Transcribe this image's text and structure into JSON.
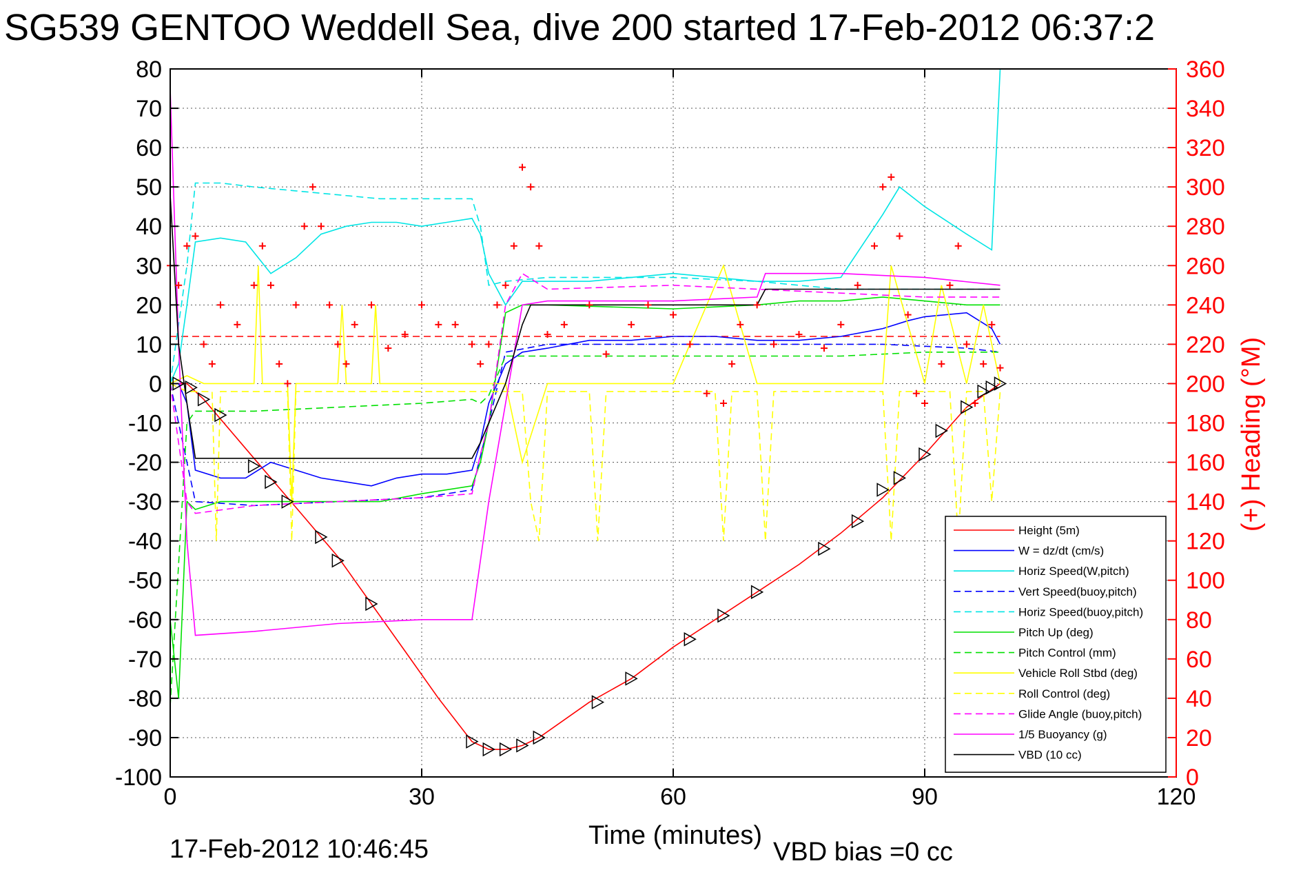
{
  "chart_data": {
    "type": "line",
    "title": "SG539 GENTOO Weddell Sea, dive 200 started 17-Feb-2012 06:37:2",
    "xlabel": "Time (minutes)",
    "ylabel_right": "(+) Heading (°M)",
    "footer_left": "17-Feb-2012 10:46:45",
    "footer_right": "VBD bias =0 cc",
    "xlim": [
      0,
      120
    ],
    "ylim_left": [
      -100,
      80
    ],
    "ylim_right": [
      0,
      360
    ],
    "xticks": [
      "0",
      "30",
      "60",
      "90",
      "120"
    ],
    "yticks_left": [
      "80",
      "70",
      "60",
      "50",
      "40",
      "30",
      "20",
      "10",
      "0",
      "-10",
      "-20",
      "-30",
      "-40",
      "-50",
      "-60",
      "-70",
      "-80",
      "-90",
      "-100"
    ],
    "yticks_right": [
      "360",
      "340",
      "320",
      "300",
      "280",
      "260",
      "240",
      "220",
      "200",
      "180",
      "160",
      "140",
      "120",
      "100",
      "80",
      "60",
      "40",
      "20",
      "0"
    ],
    "grid": true,
    "legend_position": "lower-right",
    "series": [
      {
        "name": "Height (5m)",
        "color": "#ff0000",
        "dash": "solid",
        "x": [
          0,
          1,
          2,
          4,
          8,
          12,
          16,
          20,
          24,
          28,
          32,
          36,
          38,
          40,
          42,
          44,
          50,
          55,
          60,
          65,
          70,
          75,
          80,
          85,
          90,
          95,
          99
        ],
        "y": [
          0,
          0,
          0,
          -4,
          -14,
          -24,
          -34,
          -44,
          -56,
          -68,
          -80,
          -91,
          -93,
          -93,
          -92,
          -90,
          -81,
          -75,
          -67,
          -60,
          -53,
          -46,
          -38,
          -29,
          -18,
          -6,
          0
        ]
      },
      {
        "name": "W = dz/dt (cm/s)",
        "color": "#0000ff",
        "dash": "solid",
        "x": [
          0,
          1,
          2,
          3,
          6,
          9,
          12,
          15,
          18,
          21,
          24,
          27,
          30,
          33,
          36,
          37,
          38,
          39,
          40,
          42,
          45,
          50,
          55,
          60,
          65,
          70,
          75,
          80,
          85,
          88,
          90,
          95,
          98,
          99
        ],
        "y": [
          0,
          0,
          -5,
          -22,
          -24,
          -24,
          -20,
          -22,
          -24,
          -25,
          -26,
          -24,
          -23,
          -23,
          -22,
          -15,
          -5,
          0,
          5,
          8,
          9,
          11,
          11,
          12,
          12,
          11,
          11,
          12,
          14,
          16,
          17,
          18,
          14,
          10
        ]
      },
      {
        "name": "Horiz Speed(W,pitch)",
        "color": "#00e5e5",
        "dash": "solid",
        "x": [
          0,
          1,
          2,
          3,
          6,
          9,
          12,
          15,
          18,
          21,
          24,
          27,
          30,
          33,
          36,
          37,
          38,
          40,
          42,
          45,
          50,
          55,
          60,
          65,
          70,
          75,
          80,
          85,
          87,
          90,
          95,
          98,
          99
        ],
        "y": [
          0,
          5,
          20,
          36,
          37,
          36,
          28,
          32,
          38,
          40,
          41,
          41,
          40,
          41,
          42,
          38,
          28,
          20,
          26,
          26,
          26,
          27,
          28,
          27,
          26,
          26,
          27,
          43,
          50,
          45,
          38,
          34,
          80
        ]
      },
      {
        "name": "Vert Speed(buoy,pitch)",
        "color": "#0000ff",
        "dash": "dashed",
        "x": [
          0,
          2,
          3,
          10,
          20,
          30,
          36,
          38,
          40,
          45,
          60,
          75,
          85,
          95,
          99
        ],
        "y": [
          0,
          -20,
          -30,
          -31,
          -30,
          -29,
          -27,
          -10,
          8,
          10,
          10,
          10,
          10,
          9,
          8
        ]
      },
      {
        "name": "Horiz Speed(buoy,pitch)",
        "color": "#00e5e5",
        "dash": "dashed",
        "x": [
          0,
          2,
          3,
          6,
          10,
          15,
          20,
          25,
          30,
          36,
          37,
          38,
          40,
          45,
          60,
          70,
          80,
          90,
          99
        ],
        "y": [
          0,
          30,
          51,
          51,
          50,
          49,
          48,
          47,
          47,
          47,
          40,
          25,
          26,
          27,
          27,
          26,
          24,
          24,
          24
        ]
      },
      {
        "name": "Pitch Up (deg)",
        "color": "#00e000",
        "dash": "solid",
        "x": [
          0,
          1,
          2,
          3,
          6,
          10,
          15,
          20,
          25,
          30,
          36,
          37,
          38,
          40,
          42,
          45,
          60,
          70,
          75,
          80,
          85,
          90,
          95,
          99
        ],
        "y": [
          -60,
          -80,
          -30,
          -32,
          -30,
          -30,
          -30,
          -30,
          -30,
          -28,
          -26,
          -20,
          -10,
          18,
          20,
          20,
          19,
          20,
          21,
          21,
          22,
          21,
          20,
          20
        ]
      },
      {
        "name": "Pitch Control (mm)",
        "color": "#00e000",
        "dash": "dashed",
        "x": [
          0,
          2,
          3,
          10,
          20,
          30,
          36,
          37,
          38,
          40,
          45,
          60,
          70,
          80,
          90,
          99
        ],
        "y": [
          -82,
          -10,
          -7,
          -7,
          -6,
          -5,
          -4,
          -5,
          -3,
          7,
          7,
          7,
          7,
          7,
          8,
          8
        ]
      },
      {
        "name": "Vehicle Roll Stbd (deg)",
        "color": "#ffff00",
        "dash": "solid",
        "x": [
          0,
          2,
          4,
          10,
          10.5,
          11,
          14,
          14.5,
          15,
          20,
          20.5,
          21,
          24,
          24.5,
          25,
          30,
          36,
          40,
          42,
          45,
          55,
          60,
          66,
          70,
          71,
          75,
          80,
          85,
          86,
          90,
          92,
          95,
          97,
          99
        ],
        "y": [
          0,
          2,
          0,
          0,
          30,
          0,
          0,
          -30,
          0,
          0,
          20,
          0,
          0,
          20,
          0,
          0,
          0,
          0,
          -20,
          0,
          0,
          0,
          30,
          0,
          0,
          0,
          0,
          0,
          30,
          0,
          25,
          0,
          20,
          0
        ]
      },
      {
        "name": "Roll Control (deg)",
        "color": "#ffff00",
        "dash": "dashed",
        "x": [
          0,
          2,
          5,
          5.5,
          6,
          14,
          14.5,
          15,
          35,
          40,
          42,
          43,
          44,
          45,
          50,
          51,
          52,
          55,
          60,
          65,
          66,
          67,
          70,
          71,
          72,
          80,
          85,
          86,
          87,
          90,
          93,
          94,
          95,
          97,
          98,
          99
        ],
        "y": [
          0,
          -2,
          -2,
          -40,
          -2,
          -2,
          -40,
          -2,
          -2,
          -2,
          -2,
          -30,
          -40,
          -2,
          -2,
          -40,
          -2,
          -2,
          -2,
          -2,
          -40,
          -2,
          -2,
          -40,
          -2,
          -2,
          -2,
          -40,
          -2,
          -2,
          -2,
          -40,
          -2,
          -2,
          -30,
          -2
        ]
      },
      {
        "name": "Glide Angle (buoy,pitch)",
        "color": "#ff00ff",
        "dash": "dashed",
        "x": [
          0,
          2,
          3,
          10,
          20,
          30,
          36,
          37,
          38,
          40,
          42,
          45,
          60,
          70,
          80,
          90,
          99
        ],
        "y": [
          0,
          -30,
          -33,
          -31,
          -30,
          -29,
          -28,
          -18,
          -10,
          20,
          28,
          24,
          25,
          24,
          23,
          22,
          22
        ]
      },
      {
        "name": "1/5 Buoyancy (g)",
        "color": "#ff00ff",
        "dash": "solid",
        "x": [
          0,
          1,
          2,
          3,
          10,
          20,
          30,
          36,
          37,
          38,
          40,
          42,
          45,
          60,
          70,
          71,
          80,
          90,
          99
        ],
        "y": [
          75,
          10,
          -40,
          -64,
          -63,
          -61,
          -60,
          -60,
          -45,
          -30,
          -5,
          20,
          21,
          21,
          22,
          28,
          28,
          27,
          25
        ]
      },
      {
        "name": "VBD (10 cc)",
        "color": "#000000",
        "dash": "solid",
        "x": [
          0,
          1,
          2,
          3,
          20,
          36,
          37,
          38,
          40,
          42,
          43,
          60,
          70,
          71,
          80,
          90,
          99
        ],
        "y": [
          48,
          10,
          -5,
          -19,
          -19,
          -19,
          -15,
          -10,
          0,
          15,
          20,
          20,
          20,
          24,
          24,
          24,
          24
        ]
      }
    ],
    "heading_series": {
      "name": "(+) Heading (°M)",
      "color": "#ff0000",
      "marker": "+",
      "x": [
        0,
        1,
        2,
        3,
        4,
        5,
        6,
        8,
        10,
        11,
        12,
        13,
        14,
        15,
        16,
        17,
        18,
        19,
        20,
        21,
        22,
        24,
        26,
        28,
        30,
        32,
        34,
        36,
        37,
        38,
        39,
        40,
        41,
        42,
        43,
        44,
        45,
        47,
        50,
        52,
        55,
        57,
        60,
        62,
        64,
        66,
        67,
        68,
        70,
        72,
        75,
        78,
        80,
        82,
        84,
        85,
        86,
        87,
        88,
        89,
        90,
        92,
        93,
        94,
        95,
        96,
        97,
        98,
        99
      ],
      "y": [
        260,
        250,
        270,
        275,
        220,
        210,
        240,
        230,
        250,
        270,
        250,
        210,
        200,
        240,
        280,
        300,
        280,
        240,
        220,
        210,
        230,
        240,
        218,
        225,
        240,
        230,
        230,
        220,
        210,
        220,
        240,
        250,
        270,
        310,
        300,
        270,
        225,
        230,
        240,
        215,
        230,
        240,
        235,
        220,
        195,
        190,
        210,
        230,
        240,
        220,
        225,
        218,
        230,
        250,
        270,
        300,
        305,
        275,
        235,
        195,
        190,
        210,
        250,
        270,
        220,
        190,
        210,
        230,
        208
      ]
    },
    "heading_reference": {
      "color": "#ff0000",
      "dash": "dashed",
      "value": 224
    },
    "triangle_markers": {
      "color": "#000000",
      "x": [
        1,
        2.5,
        4,
        6,
        10,
        12,
        14,
        18,
        20,
        24,
        36,
        38,
        40,
        42,
        44,
        51,
        55,
        62,
        66,
        70,
        78,
        82,
        85,
        87,
        90,
        92,
        95,
        97,
        98,
        99
      ],
      "y": [
        0,
        -1,
        -4,
        -8,
        -21,
        -25,
        -30,
        -39,
        -45,
        -56,
        -91,
        -93,
        -93,
        -92,
        -90,
        -81,
        -75,
        -65,
        -59,
        -53,
        -42,
        -35,
        -27,
        -24,
        -18,
        -12,
        -6,
        -2,
        -1,
        0
      ]
    }
  }
}
